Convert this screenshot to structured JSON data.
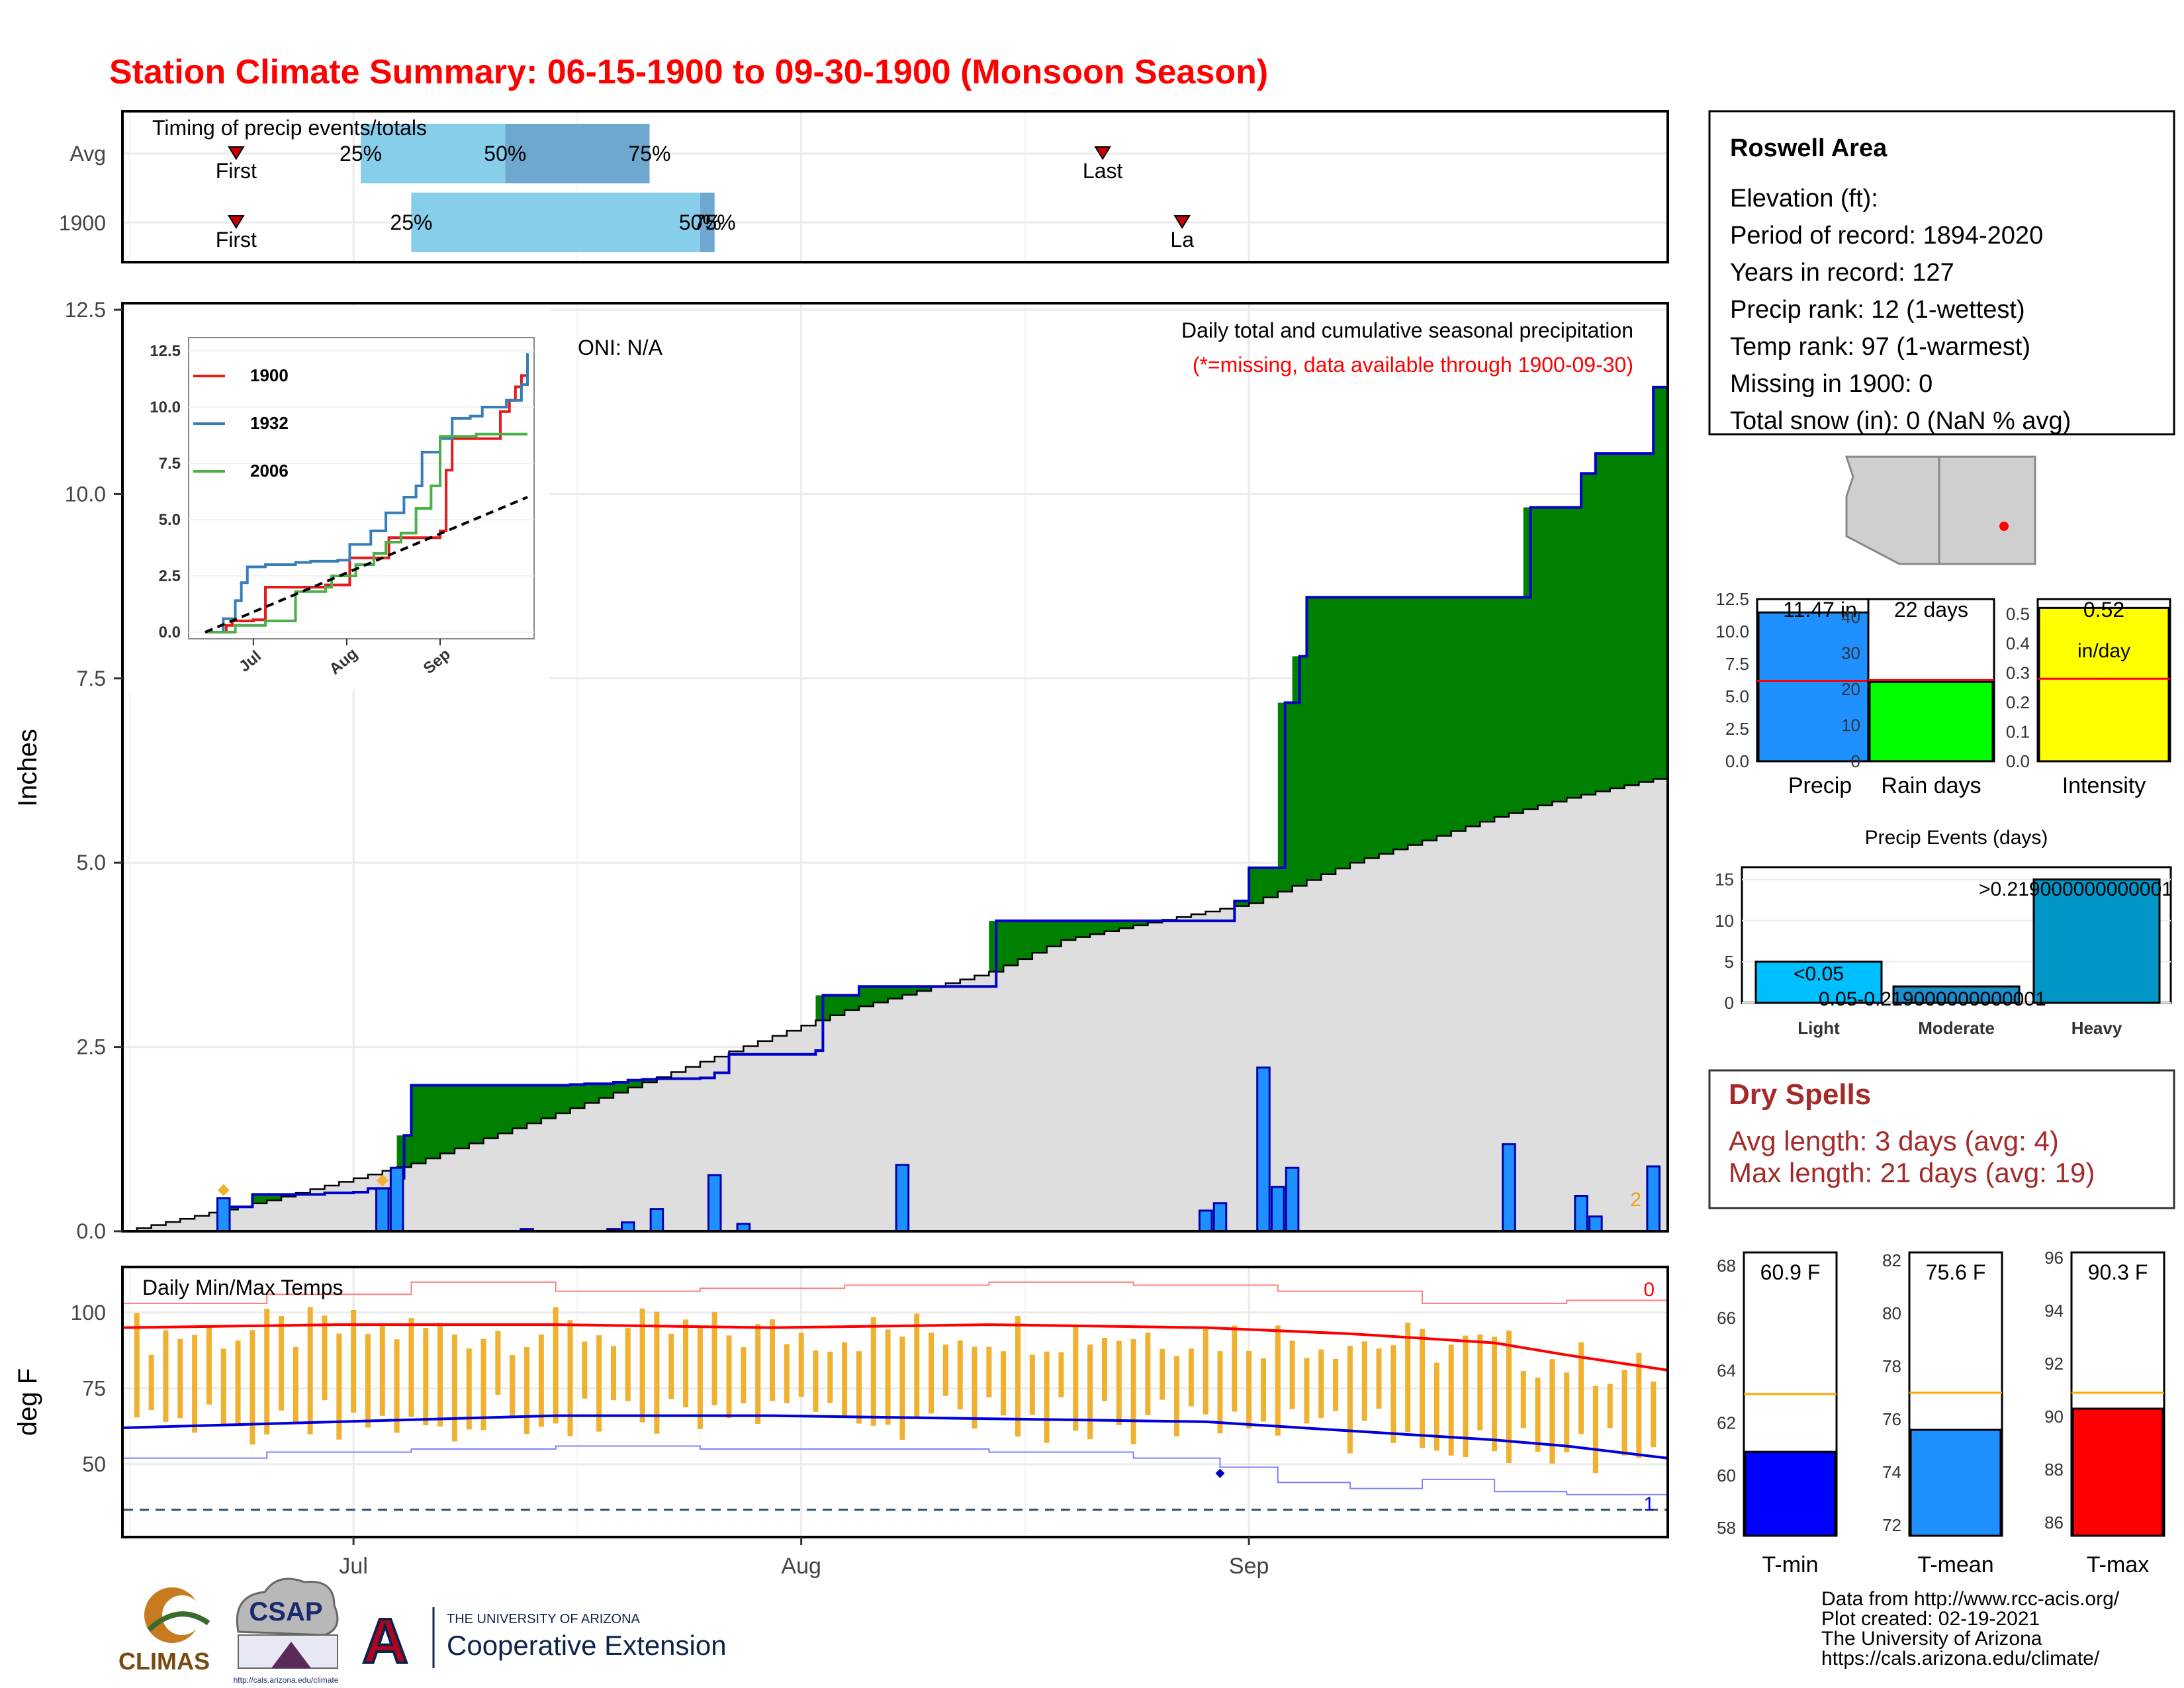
{
  "title": "Station Climate Summary: 06-15-1900 to 09-30-1900 (Monsoon Season)",
  "colors": {
    "title": "#ff0000",
    "q_light": "#87ceeb",
    "q_mid": "#6fa8cf",
    "marker": "#cc0000",
    "green": "#008000",
    "brown": "#7a4f10",
    "avg_fill": "#dedede",
    "bar_blue": "#1e90ff",
    "stair_blue": "#0000cc",
    "orange": "#f0b030",
    "tmax": "#ff0000",
    "tmin": "#0000dd",
    "yellow": "#ffff00",
    "lime": "#00ff00",
    "light_blue": "#00bfff",
    "mid_blue": "#1d8cc9",
    "heavy_blue": "#0096c8",
    "dry_red": "#a52a2a",
    "dashed": "#2f4f6f"
  },
  "timing": {
    "label": "Timing of precip events/totals",
    "rows": [
      {
        "name": "Avg",
        "first_label": "First",
        "last_label": "Last",
        "first": 1,
        "last": 61,
        "q25": 16.5,
        "q50": 26.5,
        "q75": 36.5,
        "q25_label": "25%",
        "q50_label": "50%",
        "q75_label": "75%"
      },
      {
        "name": "1900",
        "first_label": "First",
        "last_label": "La",
        "first": 1,
        "last": 66.5,
        "q25": 20,
        "q50": 40,
        "q75": 41,
        "q25_label": "25%",
        "q50_label": "50%",
        "q75_label": "75%"
      }
    ]
  },
  "x_axis": {
    "labels": [
      "Jul",
      "Aug",
      "Sep"
    ],
    "label_days": [
      16,
      47,
      78
    ],
    "day_max": 107
  },
  "main": {
    "ylabel": "Inches",
    "y_ticks": [
      "0.0",
      "2.5",
      "5.0",
      "7.5",
      "10.0",
      "12.5"
    ],
    "oni": "ONI: N/A",
    "caption": "Daily total and cumulative seasonal precipitation",
    "missing_note": "(*=missing, data available through 1900-09-30)",
    "corner_count": "2",
    "chart_data": {
      "type": "area",
      "x_unit": "day of season (0 = 06-15)",
      "ylim": [
        0,
        12.5
      ],
      "cumulative_1900": [
        [
          0,
          0
        ],
        [
          7,
          0.33
        ],
        [
          8,
          0.33
        ],
        [
          9,
          0.5
        ],
        [
          10,
          0.5
        ],
        [
          14,
          0.52
        ],
        [
          16,
          0.53
        ],
        [
          17,
          0.58
        ],
        [
          18,
          0.58
        ],
        [
          19,
          0.72
        ],
        [
          19.5,
          1.3
        ],
        [
          20,
          1.98
        ],
        [
          27,
          1.98
        ],
        [
          28,
          1.98
        ],
        [
          31,
          1.99
        ],
        [
          32,
          2.0
        ],
        [
          34,
          2.02
        ],
        [
          35,
          2.05
        ],
        [
          36,
          2.06
        ],
        [
          37,
          2.07
        ],
        [
          40,
          2.08
        ],
        [
          41,
          2.15
        ],
        [
          42,
          2.4
        ],
        [
          43,
          2.4
        ],
        [
          48,
          2.45
        ],
        [
          48.5,
          3.2
        ],
        [
          49,
          3.2
        ],
        [
          51,
          3.32
        ],
        [
          58,
          3.32
        ],
        [
          59,
          3.32
        ],
        [
          60,
          3.32
        ],
        [
          60.5,
          4.21
        ],
        [
          61,
          4.21
        ],
        [
          75,
          4.21
        ],
        [
          76,
          4.21
        ],
        [
          77,
          4.48
        ],
        [
          78,
          4.93
        ],
        [
          79,
          4.93
        ],
        [
          80,
          4.93
        ],
        [
          80.5,
          7.17
        ],
        [
          81,
          7.17
        ],
        [
          81.5,
          7.8
        ],
        [
          82,
          8.6
        ],
        [
          89,
          8.6
        ],
        [
          96,
          8.6
        ],
        [
          97,
          8.6
        ],
        [
          97.5,
          9.82
        ],
        [
          100,
          9.82
        ],
        [
          101,
          10.28
        ],
        [
          102,
          10.55
        ],
        [
          105,
          10.55
        ],
        [
          106,
          11.45
        ],
        [
          107,
          11.45
        ]
      ],
      "normal": [
        [
          0,
          0
        ],
        [
          10,
          0.42
        ],
        [
          20,
          0.92
        ],
        [
          30,
          1.6
        ],
        [
          40,
          2.3
        ],
        [
          50,
          3.0
        ],
        [
          60,
          3.52
        ],
        [
          65,
          3.95
        ],
        [
          70,
          4.15
        ],
        [
          78,
          4.45
        ],
        [
          85,
          5.0
        ],
        [
          90,
          5.3
        ],
        [
          95,
          5.62
        ],
        [
          100,
          5.88
        ],
        [
          107,
          6.18
        ]
      ],
      "daily_bars": [
        [
          7,
          0.45
        ],
        [
          18,
          0.58
        ],
        [
          19,
          0.86
        ],
        [
          28,
          0.03
        ],
        [
          34,
          0.03
        ],
        [
          35,
          0.12
        ],
        [
          37,
          0.3
        ],
        [
          41,
          0.76
        ],
        [
          43,
          0.1
        ],
        [
          54,
          0.9
        ],
        [
          75,
          0.28
        ],
        [
          76,
          0.38
        ],
        [
          79,
          2.22
        ],
        [
          80,
          0.6
        ],
        [
          81,
          0.86
        ],
        [
          96,
          1.18
        ],
        [
          101,
          0.48
        ],
        [
          102,
          0.2
        ],
        [
          106,
          0.88
        ]
      ],
      "orange_markers": [
        [
          7,
          0.45
        ],
        [
          18,
          0.58
        ]
      ]
    }
  },
  "inset": {
    "y_ticks": [
      "0.0",
      "2.5",
      "5.0",
      "7.5",
      "10.0",
      "12.5"
    ],
    "x_labels": [
      "Jul",
      "Aug",
      "Sep"
    ],
    "legend": [
      "1900",
      "1932",
      "2006"
    ],
    "chart_data": {
      "type": "line",
      "ylim": [
        0,
        12.5
      ],
      "series": [
        {
          "name": "1900",
          "color": "#e41a1c",
          "points": [
            [
              0,
              0
            ],
            [
              7,
              0.3
            ],
            [
              9,
              0.5
            ],
            [
              16,
              0.55
            ],
            [
              20,
              2.0
            ],
            [
              40,
              2.1
            ],
            [
              48,
              3.3
            ],
            [
              60,
              3.3
            ],
            [
              61,
              4.2
            ],
            [
              78,
              4.5
            ],
            [
              80,
              7.2
            ],
            [
              82,
              8.6
            ],
            [
              96,
              8.6
            ],
            [
              98,
              9.8
            ],
            [
              101,
              10.3
            ],
            [
              103,
              10.9
            ],
            [
              105,
              11.4
            ],
            [
              107,
              11.4
            ]
          ]
        },
        {
          "name": "1932",
          "color": "#377eb8",
          "points": [
            [
              0,
              0
            ],
            [
              6,
              0.6
            ],
            [
              10,
              1.4
            ],
            [
              12,
              2.2
            ],
            [
              14,
              2.9
            ],
            [
              20,
              3.0
            ],
            [
              30,
              3.1
            ],
            [
              35,
              3.15
            ],
            [
              44,
              3.2
            ],
            [
              48,
              3.9
            ],
            [
              55,
              4.5
            ],
            [
              60,
              5.3
            ],
            [
              66,
              6.0
            ],
            [
              70,
              6.5
            ],
            [
              72,
              8.0
            ],
            [
              78,
              8.6
            ],
            [
              82,
              9.5
            ],
            [
              88,
              9.6
            ],
            [
              92,
              10.0
            ],
            [
              100,
              10.3
            ],
            [
              105,
              11.0
            ],
            [
              107,
              12.4
            ]
          ]
        },
        {
          "name": "2006",
          "color": "#4daf4a",
          "points": [
            [
              0,
              0
            ],
            [
              10,
              0.3
            ],
            [
              20,
              0.5
            ],
            [
              30,
              1.8
            ],
            [
              40,
              2.0
            ],
            [
              42,
              2.5
            ],
            [
              50,
              3.0
            ],
            [
              56,
              3.5
            ],
            [
              60,
              4.0
            ],
            [
              65,
              4.4
            ],
            [
              70,
              5.5
            ],
            [
              75,
              6.5
            ],
            [
              78,
              8.7
            ],
            [
              90,
              8.8
            ],
            [
              107,
              8.8
            ]
          ]
        },
        {
          "name": "Avg",
          "color": "#000000",
          "points": [
            [
              0,
              0
            ],
            [
              107,
              6.0
            ]
          ]
        }
      ]
    }
  },
  "temps": {
    "label": "Daily Min/Max Temps",
    "ylabel": "deg F",
    "y_ticks": [
      "50",
      "75",
      "100"
    ],
    "top_count": "0",
    "bottom_count": "1",
    "chart_data": {
      "type": "line",
      "ylim": [
        26,
        115
      ],
      "dashed_y": 35,
      "smoothed_max": [
        [
          0,
          95
        ],
        [
          15,
          96
        ],
        [
          30,
          96
        ],
        [
          45,
          95
        ],
        [
          60,
          96
        ],
        [
          75,
          95
        ],
        [
          85,
          93
        ],
        [
          95,
          90
        ],
        [
          100,
          86
        ],
        [
          107,
          81
        ]
      ],
      "smoothed_min": [
        [
          0,
          62
        ],
        [
          15,
          64
        ],
        [
          30,
          66
        ],
        [
          45,
          66
        ],
        [
          60,
          65
        ],
        [
          75,
          64
        ],
        [
          85,
          61
        ],
        [
          95,
          58
        ],
        [
          100,
          56
        ],
        [
          107,
          52
        ]
      ],
      "record_max": [
        [
          0,
          103
        ],
        [
          10,
          106
        ],
        [
          20,
          110
        ],
        [
          30,
          107
        ],
        [
          40,
          108
        ],
        [
          50,
          109
        ],
        [
          60,
          110
        ],
        [
          70,
          109
        ],
        [
          80,
          107
        ],
        [
          90,
          103
        ],
        [
          100,
          104
        ],
        [
          107,
          97
        ]
      ],
      "record_min": [
        [
          0,
          52
        ],
        [
          10,
          54
        ],
        [
          20,
          55
        ],
        [
          30,
          56
        ],
        [
          40,
          55
        ],
        [
          50,
          55
        ],
        [
          60,
          54
        ],
        [
          70,
          52
        ],
        [
          76,
          49
        ],
        [
          80,
          44
        ],
        [
          85,
          42
        ],
        [
          90,
          45
        ],
        [
          95,
          41
        ],
        [
          100,
          40
        ],
        [
          107,
          40
        ]
      ],
      "min_marker": [
        76,
        47
      ]
    }
  },
  "station": {
    "name": "Roswell Area",
    "lines": [
      "Elevation (ft):",
      "Period of record: 1894-2020",
      "Years in record: 127",
      "Precip rank: 12 (1-wettest)",
      "Temp rank: 97 (1-warmest)",
      "Missing in 1900: 0",
      "Total snow (in): 0 (NaN % avg)"
    ]
  },
  "mini_bars": [
    {
      "label": "Precip",
      "value": 11.47,
      "avg": 6.2,
      "value_text": "11.47 in",
      "ticks": [
        "0.0",
        "2.5",
        "5.0",
        "7.5",
        "10.0",
        "12.5"
      ],
      "ymax": 12.5,
      "color": "#1e90ff"
    },
    {
      "label": "Rain days",
      "value": 22,
      "avg": 22.5,
      "value_text": "22 days",
      "ticks": [
        "0",
        "10",
        "20",
        "30",
        "40"
      ],
      "ymax": 45,
      "color": "#00ff00"
    },
    {
      "label": "Intensity",
      "value": 0.52,
      "avg": 0.28,
      "value_text": "0.52",
      "value_text2": "in/day",
      "ticks": [
        "0.0",
        "0.1",
        "0.2",
        "0.3",
        "0.4",
        "0.5"
      ],
      "ymax": 0.55,
      "color": "#ffff00"
    }
  ],
  "events": {
    "title": "Precip Events (days)",
    "ticks": [
      "0",
      "5",
      "10",
      "15"
    ],
    "ymax": 16.5,
    "bars": [
      {
        "cat": "Light",
        "value": 5,
        "text": "<0.05",
        "color": "#00bfff"
      },
      {
        "cat": "Moderate",
        "value": 2,
        "text": "0.05-0.219000000000001",
        "color": "#1d8cc9"
      },
      {
        "cat": "Heavy",
        "value": 15,
        "text": ">0.219000000000001",
        "color": "#0096c8"
      }
    ]
  },
  "dry": {
    "title": "Dry Spells",
    "line1": "Avg length: 3 days (avg: 4)",
    "line2": "Max length: 21 days (avg: 19)"
  },
  "temp_bars": [
    {
      "label": "T-min",
      "value": 60.9,
      "avg": 63.1,
      "text": "60.9 F",
      "ymin": 57.7,
      "ymax": 68.5,
      "ticks": [
        58,
        60,
        62,
        64,
        66,
        68
      ],
      "color": "#0000ff"
    },
    {
      "label": "T-mean",
      "value": 75.6,
      "avg": 77.0,
      "text": "75.6 F",
      "ymin": 71.6,
      "ymax": 82.3,
      "ticks": [
        72,
        74,
        76,
        78,
        80,
        82
      ],
      "color": "#1e90ff"
    },
    {
      "label": "T-max",
      "value": 90.3,
      "avg": 90.9,
      "text": "90.3 F",
      "ymin": 85.5,
      "ymax": 96.2,
      "ticks": [
        86,
        88,
        90,
        92,
        94,
        96
      ],
      "color": "#ff0000"
    }
  ],
  "credits": {
    "climas": "CLIMAS",
    "csap": "CSAP",
    "csap_url": "http://cals.arizona.edu/climate",
    "ua_small": "THE UNIVERSITY OF ARIZONA",
    "ua_big": "Cooperative Extension",
    "lines": [
      "Data from http://www.rcc-acis.org/",
      "Plot created: 02-19-2021",
      "The University of Arizona",
      "https://cals.arizona.edu/climate/"
    ]
  }
}
